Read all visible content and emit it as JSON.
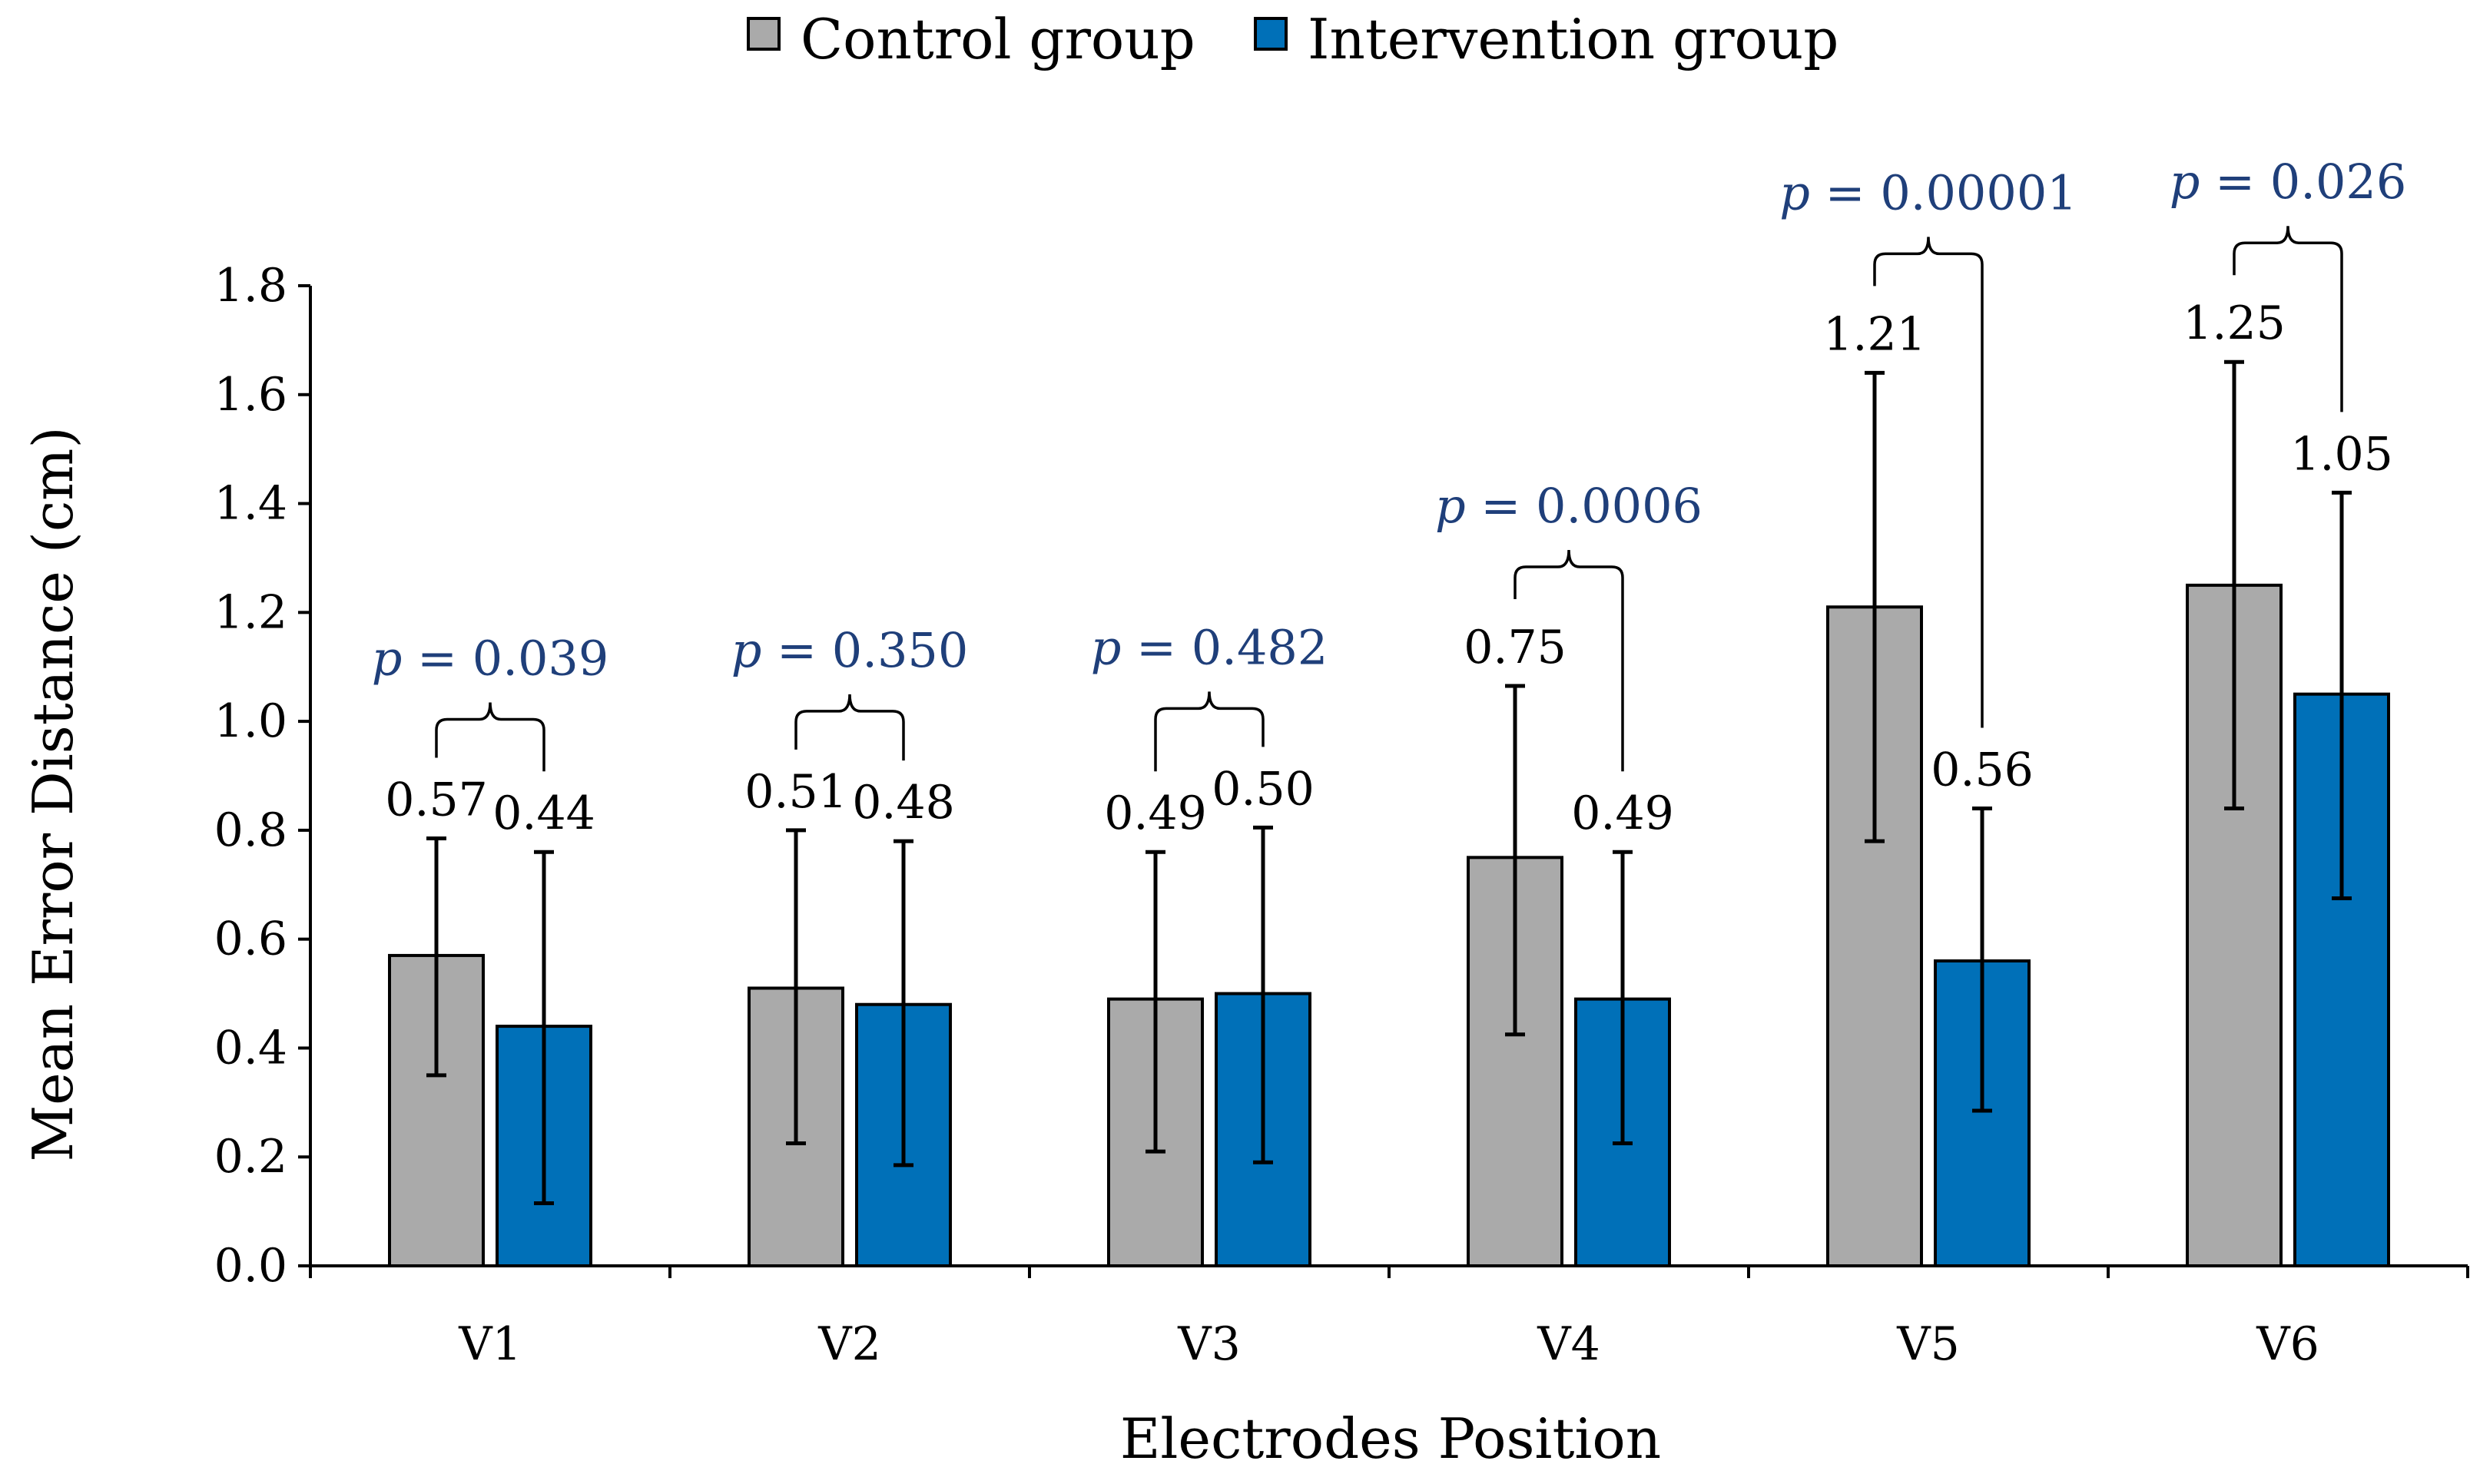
{
  "chart_data": {
    "type": "bar",
    "title": "",
    "xlabel": "Electrodes Position",
    "ylabel": "Mean Error Distance (cm)",
    "ylim": [
      0,
      1.8
    ],
    "yticks": [
      "0.0",
      "0.2",
      "0.4",
      "0.6",
      "0.8",
      "1.0",
      "1.2",
      "1.4",
      "1.6",
      "1.8"
    ],
    "grid": false,
    "legend_position": "top-center",
    "categories": [
      "V1",
      "V2",
      "V3",
      "V4",
      "V5",
      "V6"
    ],
    "series": [
      {
        "name": "Control group",
        "color": "#aaaaaa",
        "values": [
          0.57,
          0.51,
          0.49,
          0.75,
          1.21,
          1.25
        ],
        "labels": [
          "0.57",
          "0.51",
          "0.49",
          "0.75",
          "1.21",
          "1.25"
        ],
        "error_lower": [
          0.35,
          0.225,
          0.21,
          0.425,
          0.78,
          0.84
        ],
        "error_upper": [
          0.785,
          0.8,
          0.76,
          1.065,
          1.64,
          1.66
        ]
      },
      {
        "name": "Intervention group",
        "color": "#0070b8",
        "values": [
          0.44,
          0.48,
          0.5,
          0.49,
          0.56,
          1.05
        ],
        "labels": [
          "0.44",
          "0.48",
          "0.50",
          "0.49",
          "0.56",
          "1.05"
        ],
        "error_lower": [
          0.115,
          0.185,
          0.19,
          0.225,
          0.285,
          0.675
        ],
        "error_upper": [
          0.76,
          0.78,
          0.805,
          0.76,
          0.84,
          1.42
        ]
      }
    ],
    "annotations": [
      {
        "category": "V1",
        "p_symbol": "p",
        "p_value": "= 0.039"
      },
      {
        "category": "V2",
        "p_symbol": "p",
        "p_value": "= 0.350"
      },
      {
        "category": "V3",
        "p_symbol": "p",
        "p_value": "= 0.482"
      },
      {
        "category": "V4",
        "p_symbol": "p",
        "p_value": "= 0.0006"
      },
      {
        "category": "V5",
        "p_symbol": "p",
        "p_value": "= 0.00001"
      },
      {
        "category": "V6",
        "p_symbol": "p",
        "p_value": "= 0.026"
      }
    ]
  }
}
